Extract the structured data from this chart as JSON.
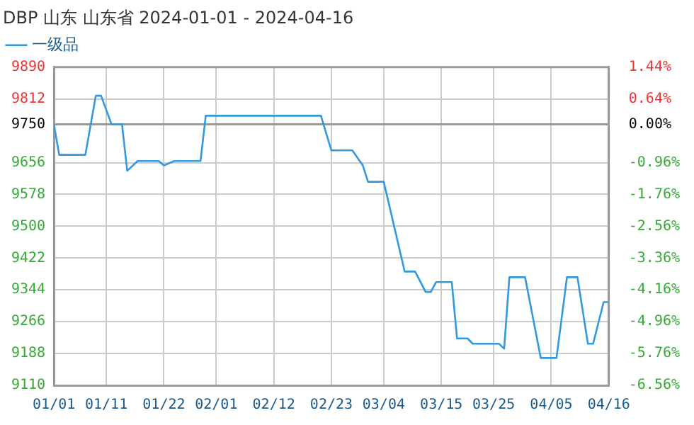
{
  "chart_data": {
    "type": "line",
    "title": "DBP 山东 山东省 2024-01-01 - 2024-04-16",
    "x": [
      "2024-01-01",
      "2024-01-02",
      "2024-01-07",
      "2024-01-09",
      "2024-01-10",
      "2024-01-12",
      "2024-01-14",
      "2024-01-15",
      "2024-01-17",
      "2024-01-21",
      "2024-01-22",
      "2024-01-24",
      "2024-01-29",
      "2024-01-30",
      "2024-02-21",
      "2024-02-23",
      "2024-02-27",
      "2024-02-29",
      "2024-03-01",
      "2024-03-04",
      "2024-03-08",
      "2024-03-10",
      "2024-03-12",
      "2024-03-13",
      "2024-03-14",
      "2024-03-17",
      "2024-03-18",
      "2024-03-20",
      "2024-03-21",
      "2024-03-26",
      "2024-03-27",
      "2024-03-28",
      "2024-03-31",
      "2024-04-03",
      "2024-04-06",
      "2024-04-08",
      "2024-04-10",
      "2024-04-12",
      "2024-04-13",
      "2024-04-15",
      "2024-04-16"
    ],
    "series": [
      {
        "name": "一级品",
        "color": "#3399dd",
        "values": [
          9750,
          9675,
          9675,
          9820,
          9820,
          9750,
          9750,
          9636,
          9660,
          9660,
          9649,
          9660,
          9660,
          9771,
          9771,
          9686,
          9686,
          9649,
          9609,
          9609,
          9389,
          9389,
          9339,
          9339,
          9363,
          9363,
          9225,
          9225,
          9212,
          9212,
          9200,
          9375,
          9375,
          9177,
          9177,
          9375,
          9375,
          9212,
          9212,
          9314,
          9314
        ]
      }
    ],
    "xlim": [
      "2024-01-01",
      "2024-04-16"
    ],
    "xticks": [
      {
        "value": "2024-01-01",
        "label": "01/01"
      },
      {
        "value": "2024-01-11",
        "label": "01/11"
      },
      {
        "value": "2024-01-22",
        "label": "01/22"
      },
      {
        "value": "2024-02-01",
        "label": "02/01"
      },
      {
        "value": "2024-02-12",
        "label": "02/12"
      },
      {
        "value": "2024-02-23",
        "label": "02/23"
      },
      {
        "value": "2024-03-04",
        "label": "03/04"
      },
      {
        "value": "2024-03-15",
        "label": "03/15"
      },
      {
        "value": "2024-03-25",
        "label": "03/25"
      },
      {
        "value": "2024-04-05",
        "label": "04/05"
      },
      {
        "value": "2024-04-16",
        "label": "04/16"
      }
    ],
    "ylim": [
      9110,
      9890
    ],
    "yticks": [
      9110,
      9188,
      9266,
      9344,
      9422,
      9500,
      9578,
      9656,
      9750,
      9812,
      9890
    ],
    "y2lim": [
      -6.56,
      1.44
    ],
    "y2ticks": [
      {
        "value": -6.56,
        "label": "-6.56%"
      },
      {
        "value": -5.76,
        "label": "-5.76%"
      },
      {
        "value": -4.96,
        "label": "-4.96%"
      },
      {
        "value": -4.16,
        "label": "-4.16%"
      },
      {
        "value": -3.36,
        "label": "-3.36%"
      },
      {
        "value": -2.56,
        "label": "-2.56%"
      },
      {
        "value": -1.76,
        "label": "-1.76%"
      },
      {
        "value": -0.96,
        "label": "-0.96%"
      },
      {
        "value": 0,
        "label": "0.00%"
      },
      {
        "value": 0.64,
        "label": "0.64%"
      },
      {
        "value": 1.44,
        "label": "1.44%"
      }
    ],
    "ref_lines": [
      {
        "axis": "y",
        "value": 9750,
        "color": "#999999"
      }
    ],
    "grid": true,
    "legend": "top left",
    "marker": "none",
    "line_style": "solid"
  }
}
